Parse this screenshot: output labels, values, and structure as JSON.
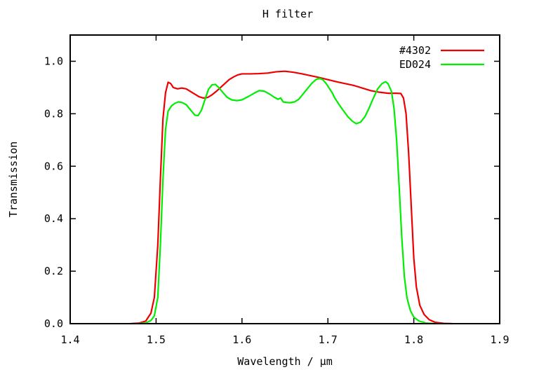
{
  "chart_data": {
    "type": "line",
    "title": "H filter",
    "xlabel": "Wavelength / µm",
    "ylabel": "Transmission",
    "xlim": [
      1.4,
      1.9
    ],
    "ylim": [
      0.0,
      1.1
    ],
    "xticks": [
      1.4,
      1.5,
      1.6,
      1.7,
      1.8,
      1.9
    ],
    "xtick_labels": [
      "1.4",
      "1.5",
      "1.6",
      "1.7",
      "1.8",
      "1.9"
    ],
    "yticks": [
      0.0,
      0.2,
      0.4,
      0.6,
      0.8,
      1.0
    ],
    "ytick_labels": [
      "0.0",
      "0.2",
      "0.4",
      "0.6",
      "0.8",
      "1.0"
    ],
    "grid": false,
    "legend": "top-right",
    "series": [
      {
        "name": "#4302",
        "color": "#ee0000",
        "points": [
          [
            1.47,
            0.0
          ],
          [
            1.48,
            0.002
          ],
          [
            1.488,
            0.01
          ],
          [
            1.494,
            0.04
          ],
          [
            1.498,
            0.1
          ],
          [
            1.502,
            0.3
          ],
          [
            1.505,
            0.55
          ],
          [
            1.508,
            0.78
          ],
          [
            1.511,
            0.88
          ],
          [
            1.514,
            0.92
          ],
          [
            1.517,
            0.915
          ],
          [
            1.52,
            0.9
          ],
          [
            1.525,
            0.895
          ],
          [
            1.53,
            0.898
          ],
          [
            1.535,
            0.895
          ],
          [
            1.54,
            0.885
          ],
          [
            1.545,
            0.875
          ],
          [
            1.55,
            0.865
          ],
          [
            1.555,
            0.86
          ],
          [
            1.56,
            0.862
          ],
          [
            1.565,
            0.872
          ],
          [
            1.57,
            0.885
          ],
          [
            1.575,
            0.9
          ],
          [
            1.58,
            0.915
          ],
          [
            1.585,
            0.93
          ],
          [
            1.59,
            0.94
          ],
          [
            1.595,
            0.948
          ],
          [
            1.6,
            0.952
          ],
          [
            1.61,
            0.952
          ],
          [
            1.62,
            0.953
          ],
          [
            1.63,
            0.955
          ],
          [
            1.64,
            0.96
          ],
          [
            1.65,
            0.962
          ],
          [
            1.66,
            0.958
          ],
          [
            1.67,
            0.952
          ],
          [
            1.68,
            0.945
          ],
          [
            1.69,
            0.938
          ],
          [
            1.7,
            0.93
          ],
          [
            1.71,
            0.922
          ],
          [
            1.72,
            0.915
          ],
          [
            1.73,
            0.908
          ],
          [
            1.74,
            0.898
          ],
          [
            1.75,
            0.888
          ],
          [
            1.76,
            0.882
          ],
          [
            1.77,
            0.878
          ],
          [
            1.78,
            0.878
          ],
          [
            1.785,
            0.877
          ],
          [
            1.788,
            0.86
          ],
          [
            1.791,
            0.8
          ],
          [
            1.794,
            0.65
          ],
          [
            1.797,
            0.45
          ],
          [
            1.8,
            0.25
          ],
          [
            1.803,
            0.14
          ],
          [
            1.807,
            0.07
          ],
          [
            1.812,
            0.035
          ],
          [
            1.818,
            0.015
          ],
          [
            1.825,
            0.005
          ],
          [
            1.835,
            0.001
          ],
          [
            1.845,
            0.0
          ]
        ]
      },
      {
        "name": "ED024",
        "color": "#00ee00",
        "points": [
          [
            1.48,
            0.0
          ],
          [
            1.488,
            0.003
          ],
          [
            1.494,
            0.012
          ],
          [
            1.498,
            0.03
          ],
          [
            1.502,
            0.1
          ],
          [
            1.505,
            0.3
          ],
          [
            1.508,
            0.55
          ],
          [
            1.511,
            0.74
          ],
          [
            1.514,
            0.81
          ],
          [
            1.518,
            0.83
          ],
          [
            1.522,
            0.84
          ],
          [
            1.526,
            0.845
          ],
          [
            1.53,
            0.843
          ],
          [
            1.535,
            0.835
          ],
          [
            1.54,
            0.815
          ],
          [
            1.545,
            0.795
          ],
          [
            1.549,
            0.793
          ],
          [
            1.553,
            0.815
          ],
          [
            1.557,
            0.855
          ],
          [
            1.561,
            0.893
          ],
          [
            1.565,
            0.91
          ],
          [
            1.569,
            0.912
          ],
          [
            1.573,
            0.9
          ],
          [
            1.578,
            0.88
          ],
          [
            1.583,
            0.862
          ],
          [
            1.588,
            0.853
          ],
          [
            1.594,
            0.85
          ],
          [
            1.6,
            0.853
          ],
          [
            1.607,
            0.865
          ],
          [
            1.614,
            0.878
          ],
          [
            1.62,
            0.888
          ],
          [
            1.626,
            0.886
          ],
          [
            1.632,
            0.875
          ],
          [
            1.638,
            0.862
          ],
          [
            1.642,
            0.855
          ],
          [
            1.645,
            0.86
          ],
          [
            1.648,
            0.845
          ],
          [
            1.652,
            0.843
          ],
          [
            1.656,
            0.842
          ],
          [
            1.661,
            0.845
          ],
          [
            1.666,
            0.855
          ],
          [
            1.671,
            0.875
          ],
          [
            1.676,
            0.895
          ],
          [
            1.681,
            0.915
          ],
          [
            1.686,
            0.93
          ],
          [
            1.69,
            0.935
          ],
          [
            1.694,
            0.93
          ],
          [
            1.698,
            0.915
          ],
          [
            1.702,
            0.895
          ],
          [
            1.705,
            0.88
          ],
          [
            1.708,
            0.86
          ],
          [
            1.713,
            0.835
          ],
          [
            1.718,
            0.812
          ],
          [
            1.723,
            0.79
          ],
          [
            1.728,
            0.773
          ],
          [
            1.733,
            0.762
          ],
          [
            1.738,
            0.768
          ],
          [
            1.743,
            0.788
          ],
          [
            1.748,
            0.822
          ],
          [
            1.753,
            0.86
          ],
          [
            1.758,
            0.895
          ],
          [
            1.763,
            0.915
          ],
          [
            1.767,
            0.922
          ],
          [
            1.77,
            0.915
          ],
          [
            1.774,
            0.885
          ],
          [
            1.777,
            0.82
          ],
          [
            1.78,
            0.7
          ],
          [
            1.783,
            0.52
          ],
          [
            1.786,
            0.33
          ],
          [
            1.789,
            0.18
          ],
          [
            1.792,
            0.1
          ],
          [
            1.796,
            0.05
          ],
          [
            1.8,
            0.025
          ],
          [
            1.806,
            0.01
          ],
          [
            1.815,
            0.002
          ],
          [
            1.825,
            0.0
          ]
        ]
      }
    ]
  }
}
